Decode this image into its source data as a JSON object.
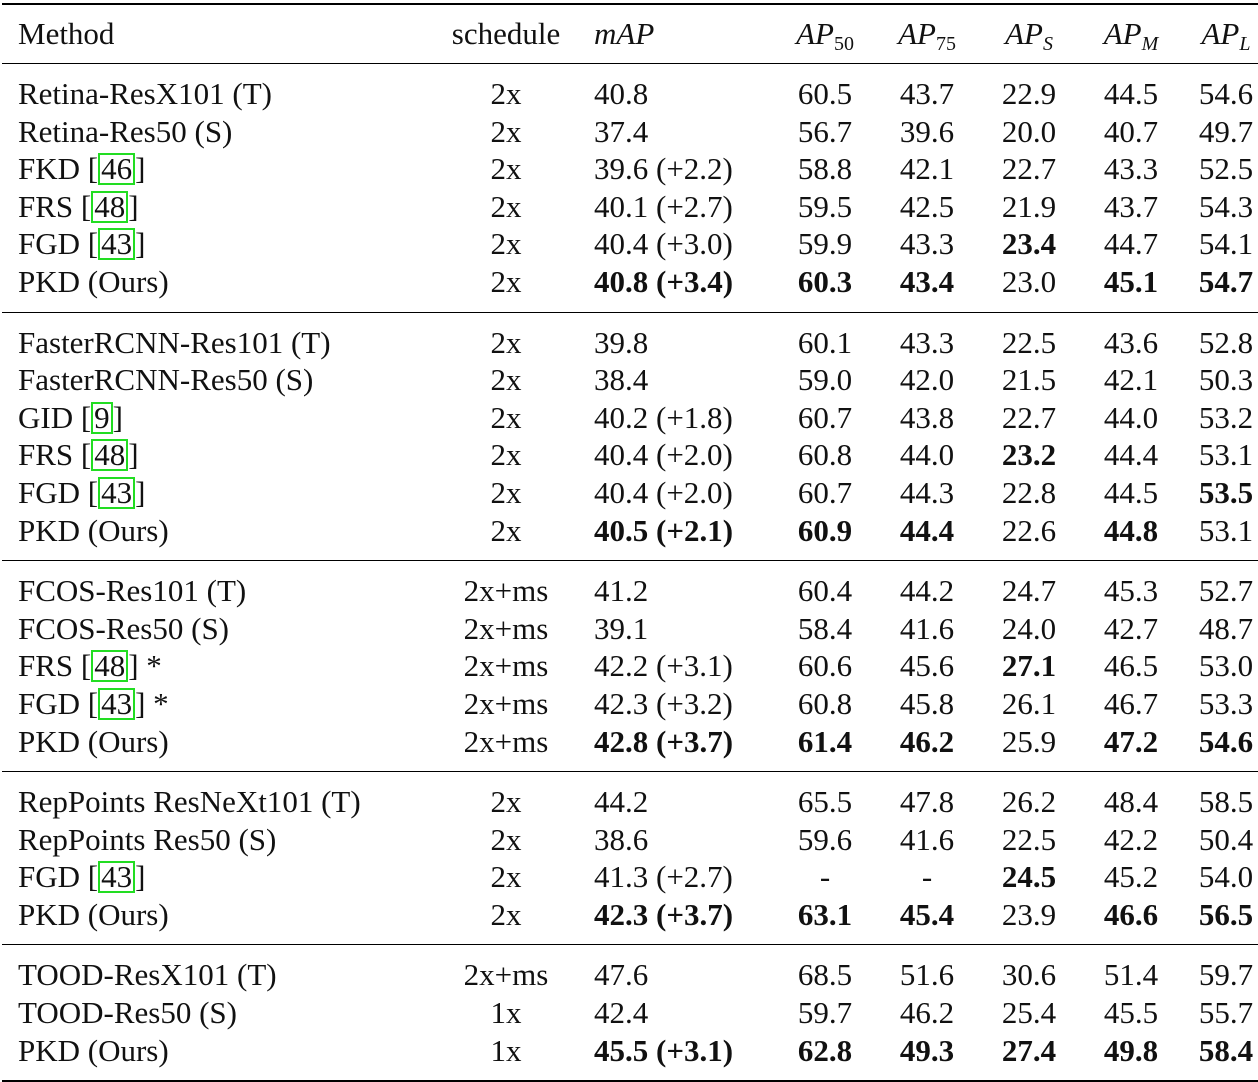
{
  "header": {
    "method": "Method",
    "schedule": "schedule",
    "map": "mAP",
    "ap_base": "AP",
    "ap50_sub": "50",
    "ap75_sub": "75",
    "aps_sub": "S",
    "apm_sub": "M",
    "apl_sub": "L"
  },
  "groups": [
    {
      "rows": [
        {
          "pre": "Retina-ResX101 (T)",
          "cite": "",
          "post": "",
          "schedule": "2x",
          "map": "40.8",
          "ap50": "60.5",
          "ap75": "43.7",
          "aps": "22.9",
          "apm": "44.5",
          "apl": "54.6",
          "bold": []
        },
        {
          "pre": "Retina-Res50 (S)",
          "cite": "",
          "post": "",
          "schedule": "2x",
          "map": "37.4",
          "ap50": "56.7",
          "ap75": "39.6",
          "aps": "20.0",
          "apm": "40.7",
          "apl": "49.7",
          "bold": []
        },
        {
          "pre": "FKD [",
          "cite": "46",
          "post": "]",
          "schedule": "2x",
          "map": "39.6 (+2.2)",
          "ap50": "58.8",
          "ap75": "42.1",
          "aps": "22.7",
          "apm": "43.3",
          "apl": "52.5",
          "bold": []
        },
        {
          "pre": "FRS [",
          "cite": "48",
          "post": "]",
          "schedule": "2x",
          "map": "40.1 (+2.7)",
          "ap50": "59.5",
          "ap75": "42.5",
          "aps": "21.9",
          "apm": "43.7",
          "apl": "54.3",
          "bold": []
        },
        {
          "pre": "FGD [",
          "cite": "43",
          "post": "]",
          "schedule": "2x",
          "map": "40.4 (+3.0)",
          "ap50": "59.9",
          "ap75": "43.3",
          "aps": "23.4",
          "apm": "44.7",
          "apl": "54.1",
          "bold": [
            "aps"
          ]
        },
        {
          "pre": "PKD (Ours)",
          "cite": "",
          "post": "",
          "schedule": "2x",
          "map": "40.8 (+3.4)",
          "ap50": "60.3",
          "ap75": "43.4",
          "aps": "23.0",
          "apm": "45.1",
          "apl": "54.7",
          "bold": [
            "map",
            "ap50",
            "ap75",
            "apm",
            "apl"
          ]
        }
      ]
    },
    {
      "rows": [
        {
          "pre": "FasterRCNN-Res101 (T)",
          "cite": "",
          "post": "",
          "schedule": "2x",
          "map": "39.8",
          "ap50": "60.1",
          "ap75": "43.3",
          "aps": "22.5",
          "apm": "43.6",
          "apl": "52.8",
          "bold": []
        },
        {
          "pre": "FasterRCNN-Res50 (S)",
          "cite": "",
          "post": "",
          "schedule": "2x",
          "map": "38.4",
          "ap50": "59.0",
          "ap75": "42.0",
          "aps": "21.5",
          "apm": "42.1",
          "apl": "50.3",
          "bold": []
        },
        {
          "pre": "GID [",
          "cite": "9",
          "post": "]",
          "schedule": "2x",
          "map": "40.2 (+1.8)",
          "ap50": "60.7",
          "ap75": "43.8",
          "aps": "22.7",
          "apm": "44.0",
          "apl": "53.2",
          "bold": []
        },
        {
          "pre": "FRS [",
          "cite": "48",
          "post": "]",
          "schedule": "2x",
          "map": "40.4 (+2.0)",
          "ap50": "60.8",
          "ap75": "44.0",
          "aps": "23.2",
          "apm": "44.4",
          "apl": "53.1",
          "bold": [
            "aps"
          ]
        },
        {
          "pre": "FGD [",
          "cite": "43",
          "post": "]",
          "schedule": "2x",
          "map": "40.4 (+2.0)",
          "ap50": "60.7",
          "ap75": "44.3",
          "aps": "22.8",
          "apm": "44.5",
          "apl": "53.5",
          "bold": [
            "apl"
          ]
        },
        {
          "pre": "PKD (Ours)",
          "cite": "",
          "post": "",
          "schedule": "2x",
          "map": "40.5 (+2.1)",
          "ap50": "60.9",
          "ap75": "44.4",
          "aps": "22.6",
          "apm": "44.8",
          "apl": "53.1",
          "bold": [
            "map",
            "ap50",
            "ap75",
            "apm"
          ]
        }
      ]
    },
    {
      "rows": [
        {
          "pre": "FCOS-Res101 (T)",
          "cite": "",
          "post": "",
          "schedule": "2x+ms",
          "map": "41.2",
          "ap50": "60.4",
          "ap75": "44.2",
          "aps": "24.7",
          "apm": "45.3",
          "apl": "52.7",
          "bold": []
        },
        {
          "pre": "FCOS-Res50 (S)",
          "cite": "",
          "post": "",
          "schedule": "2x+ms",
          "map": "39.1",
          "ap50": "58.4",
          "ap75": "41.6",
          "aps": "24.0",
          "apm": "42.7",
          "apl": "48.7",
          "bold": []
        },
        {
          "pre": "FRS [",
          "cite": "48",
          "post": "] *",
          "schedule": "2x+ms",
          "map": "42.2 (+3.1)",
          "ap50": "60.6",
          "ap75": "45.6",
          "aps": "27.1",
          "apm": "46.5",
          "apl": "53.0",
          "bold": [
            "aps"
          ]
        },
        {
          "pre": "FGD [",
          "cite": "43",
          "post": "] *",
          "schedule": "2x+ms",
          "map": "42.3 (+3.2)",
          "ap50": "60.8",
          "ap75": "45.8",
          "aps": "26.1",
          "apm": "46.7",
          "apl": "53.3",
          "bold": []
        },
        {
          "pre": "PKD (Ours)",
          "cite": "",
          "post": "",
          "schedule": "2x+ms",
          "map": "42.8 (+3.7)",
          "ap50": "61.4",
          "ap75": "46.2",
          "aps": "25.9",
          "apm": "47.2",
          "apl": "54.6",
          "bold": [
            "map",
            "ap50",
            "ap75",
            "apm",
            "apl"
          ]
        }
      ]
    },
    {
      "rows": [
        {
          "pre": "RepPoints ResNeXt101 (T)",
          "cite": "",
          "post": "",
          "schedule": "2x",
          "map": "44.2",
          "ap50": "65.5",
          "ap75": "47.8",
          "aps": "26.2",
          "apm": "48.4",
          "apl": "58.5",
          "bold": []
        },
        {
          "pre": "RepPoints Res50 (S)",
          "cite": "",
          "post": "",
          "schedule": "2x",
          "map": "38.6",
          "ap50": "59.6",
          "ap75": "41.6",
          "aps": "22.5",
          "apm": "42.2",
          "apl": "50.4",
          "bold": []
        },
        {
          "pre": "FGD [",
          "cite": "43",
          "post": "]",
          "schedule": "2x",
          "map": "41.3 (+2.7)",
          "ap50": "-",
          "ap75": "-",
          "aps": "24.5",
          "apm": "45.2",
          "apl": "54.0",
          "bold": [
            "aps"
          ]
        },
        {
          "pre": "PKD (Ours)",
          "cite": "",
          "post": "",
          "schedule": "2x",
          "map": "42.3 (+3.7)",
          "ap50": "63.1",
          "ap75": "45.4",
          "aps": "23.9",
          "apm": "46.6",
          "apl": "56.5",
          "bold": [
            "map",
            "ap50",
            "ap75",
            "apm",
            "apl"
          ]
        }
      ]
    },
    {
      "rows": [
        {
          "pre": "TOOD-ResX101 (T)",
          "cite": "",
          "post": "",
          "schedule": "2x+ms",
          "map": "47.6",
          "ap50": "68.5",
          "ap75": "51.6",
          "aps": "30.6",
          "apm": "51.4",
          "apl": "59.7",
          "bold": []
        },
        {
          "pre": "TOOD-Res50 (S)",
          "cite": "",
          "post": "",
          "schedule": "1x",
          "map": "42.4",
          "ap50": "59.7",
          "ap75": "46.2",
          "aps": "25.4",
          "apm": "45.5",
          "apl": "55.7",
          "bold": []
        },
        {
          "pre": "PKD (Ours)",
          "cite": "",
          "post": "",
          "schedule": "1x",
          "map": "45.5 (+3.1)",
          "ap50": "62.8",
          "ap75": "49.3",
          "aps": "27.4",
          "apm": "49.8",
          "apl": "58.4",
          "bold": [
            "map",
            "ap50",
            "ap75",
            "aps",
            "apm",
            "apl"
          ]
        }
      ]
    }
  ],
  "style": {
    "citation_box_color": "#22dd22"
  }
}
